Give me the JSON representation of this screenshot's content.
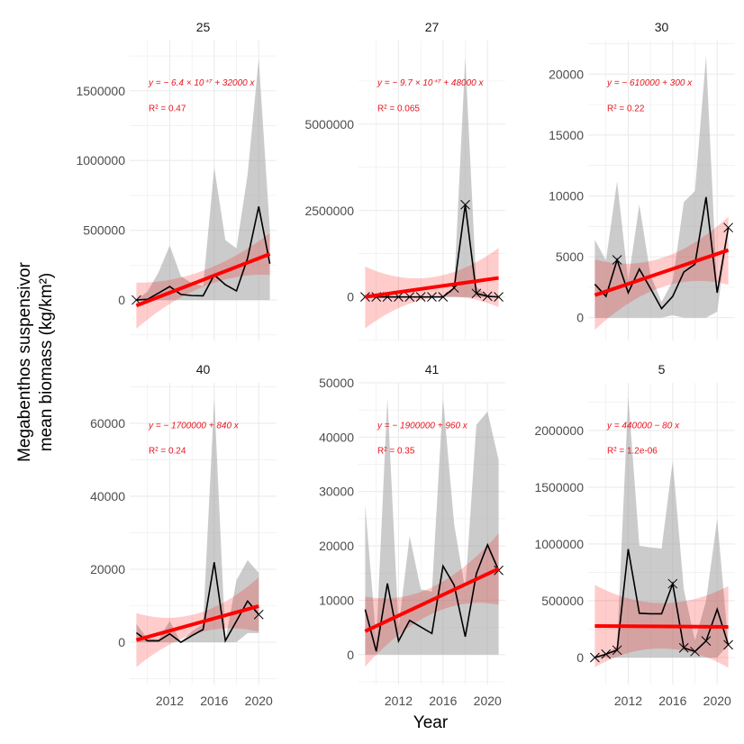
{
  "chart_data": {
    "type": "line",
    "layout": "facet grid 2 rows x 3 columns, free y scales, shared x",
    "xlabel": "Year",
    "ylabel": [
      "Megabenthos suspensivor",
      "mean biomass (kg/km²)"
    ],
    "xlim": [
      2008.4,
      2021.6
    ],
    "x_ticks": [
      2012,
      2016,
      2020
    ],
    "grid": true,
    "colors": {
      "line": "#000000",
      "ribbon": "#bebebe",
      "fit": "#ff0000",
      "fit_ci": "#ff9999",
      "equation": "#e8141e"
    },
    "panels": [
      {
        "title": "25",
        "equation": "y = − 6.4 × 10⁺⁷ + 32000 x",
        "r2": "R² = 0.47",
        "ylim": [
          -290000,
          1860000
        ],
        "y_ticks": [
          0,
          500000,
          1000000,
          1500000
        ],
        "x": [
          2009,
          2010,
          2011,
          2012,
          2013,
          2014,
          2015,
          2016,
          2017,
          2018,
          2019,
          2020,
          2021
        ],
        "y": [
          0,
          5000,
          50000,
          97000,
          40000,
          32000,
          30000,
          180000,
          110000,
          65000,
          300000,
          670000,
          260000
        ],
        "ribbon_upper": [
          0,
          60000,
          200000,
          390000,
          170000,
          120000,
          100000,
          950000,
          430000,
          370000,
          900000,
          1730000,
          500000
        ],
        "ribbon_lower": [
          0,
          0,
          0,
          0,
          0,
          0,
          0,
          0,
          0,
          0,
          0,
          0,
          0
        ],
        "markers": [
          2009
        ],
        "fit": {
          "x": [
            2009,
            2021
          ],
          "y": [
            -40000,
            330000
          ]
        },
        "ci": {
          "x": [
            2009,
            2015,
            2021
          ],
          "lower": [
            -205000,
            95000,
            180000
          ],
          "upper": [
            125000,
            210000,
            480000
          ]
        }
      },
      {
        "title": "27",
        "equation": "y = − 9.7 × 10⁺⁷ + 48000 x",
        "r2": "R² = 0.065",
        "ylim": [
          -1260000,
          7420000
        ],
        "y_ticks": [
          0,
          2500000,
          5000000
        ],
        "x": [
          2009,
          2010,
          2011,
          2012,
          2013,
          2014,
          2015,
          2016,
          2017,
          2018,
          2019,
          2020,
          2021
        ],
        "y": [
          0,
          0,
          0,
          0,
          0,
          0,
          0,
          0,
          260000,
          2670000,
          100000,
          20000,
          0
        ],
        "ribbon_upper": [
          0,
          0,
          0,
          0,
          0,
          0,
          0,
          0,
          300000,
          6930000,
          300000,
          20000,
          0
        ],
        "ribbon_lower": [
          0,
          0,
          0,
          0,
          0,
          0,
          0,
          0,
          0,
          0,
          0,
          0,
          0
        ],
        "markers": [
          2009,
          2010,
          2011,
          2012,
          2013,
          2014,
          2015,
          2016,
          2017,
          2018,
          2019,
          2020,
          2021
        ],
        "fit": {
          "x": [
            2009,
            2021
          ],
          "y": [
            0,
            550000
          ]
        },
        "ci": {
          "x": [
            2009,
            2015,
            2021
          ],
          "lower": [
            -910000,
            -30000,
            -300000
          ],
          "upper": [
            880000,
            570000,
            1420000
          ]
        }
      },
      {
        "title": "30",
        "equation": "y = − 610000 + 300 x",
        "r2": "R² = 0.22",
        "ylim": [
          -1870,
          22760
        ],
        "y_ticks": [
          0,
          5000,
          10000,
          15000,
          20000
        ],
        "x": [
          2009,
          2010,
          2011,
          2012,
          2013,
          2014,
          2015,
          2016,
          2017,
          2018,
          2019,
          2020,
          2021
        ],
        "y": [
          2750,
          1750,
          4750,
          2050,
          4000,
          2400,
          750,
          1750,
          3750,
          4400,
          9900,
          2050,
          7400
        ],
        "ribbon_upper": [
          6400,
          4700,
          11200,
          3000,
          9300,
          3500,
          1300,
          3000,
          9500,
          10400,
          21500,
          2100,
          7400
        ],
        "ribbon_lower": [
          0,
          0,
          0,
          0,
          0,
          0,
          0,
          200,
          0,
          0,
          0,
          500,
          7400
        ],
        "markers": [
          2011,
          2021
        ],
        "fit": {
          "x": [
            2009,
            2021
          ],
          "y": [
            1850,
            5550
          ]
        },
        "ci": {
          "x": [
            2009,
            2015,
            2021
          ],
          "lower": [
            -1000,
            2500,
            2700
          ],
          "upper": [
            4800,
            4900,
            8300
          ]
        }
      },
      {
        "title": "40",
        "equation": "y = − 1700000 + 840 x",
        "r2": "R² = 0.24",
        "ylim": [
          -11600,
          71100
        ],
        "y_ticks": [
          0,
          20000,
          40000,
          60000
        ],
        "x": [
          2009,
          2010,
          2011,
          2012,
          2013,
          2014,
          2015,
          2016,
          2017,
          2018,
          2019,
          2020
        ],
        "y": [
          2600,
          400,
          400,
          2300,
          0,
          1800,
          3500,
          21900,
          400,
          5800,
          11300,
          7600
        ],
        "ribbon_upper": [
          5000,
          1000,
          800,
          5800,
          0,
          3000,
          5000,
          67000,
          500,
          17000,
          22500,
          19000
        ],
        "ribbon_lower": [
          0,
          0,
          0,
          0,
          0,
          0,
          0,
          0,
          0,
          0,
          2500,
          2500
        ],
        "markers": [
          2020
        ],
        "fit": {
          "x": [
            2009,
            2020
          ],
          "y": [
            600,
            9900
          ]
        },
        "ci": {
          "x": [
            2009,
            2014.5,
            2020
          ],
          "lower": [
            -6800,
            2500,
            2900
          ],
          "upper": [
            8000,
            7900,
            17800
          ]
        }
      },
      {
        "title": "41",
        "equation": "y = − 1900000 + 960 x",
        "r2": "R² = 0.35",
        "ylim": [
          -5500,
          50000
        ],
        "y_ticks": [
          0,
          10000,
          20000,
          30000,
          40000,
          50000
        ],
        "x": [
          2009,
          2010,
          2011,
          2012,
          2013,
          2014,
          2015,
          2016,
          2017,
          2018,
          2019,
          2020,
          2021
        ],
        "y": [
          8300,
          600,
          13100,
          2500,
          6300,
          5100,
          3900,
          16300,
          12800,
          3300,
          14900,
          20200,
          15500
        ],
        "ribbon_upper": [
          27600,
          2800,
          47200,
          5000,
          21800,
          12000,
          11600,
          47200,
          24000,
          11900,
          42300,
          44700,
          35800
        ],
        "ribbon_lower": [
          0,
          0,
          0,
          0,
          0,
          0,
          0,
          0,
          0,
          0,
          0,
          0,
          0
        ],
        "markers": [
          2021
        ],
        "fit": {
          "x": [
            2009,
            2021
          ],
          "y": [
            4300,
            15800
          ]
        },
        "ci": {
          "x": [
            2009,
            2015,
            2021
          ],
          "lower": [
            -2200,
            7500,
            9200
          ],
          "upper": [
            10700,
            12400,
            22300
          ]
        }
      },
      {
        "title": "5",
        "equation": "y = 440000 − 80 x",
        "r2": "R² = 1.2e-06",
        "ylim": [
          -238000,
          2420000
        ],
        "y_ticks": [
          0,
          500000,
          1000000,
          1500000,
          2000000
        ],
        "x": [
          2009,
          2010,
          2011,
          2012,
          2013,
          2014,
          2015,
          2016,
          2017,
          2018,
          2019,
          2020,
          2021
        ],
        "y": [
          0,
          30000,
          65000,
          955000,
          390000,
          385000,
          385000,
          650000,
          85000,
          53000,
          146000,
          425000,
          112000
        ],
        "ribbon_upper": [
          0,
          30000,
          100000,
          2300000,
          985000,
          970000,
          960000,
          1730000,
          600000,
          150000,
          500000,
          1220000,
          112000
        ],
        "ribbon_lower": [
          0,
          0,
          0,
          0,
          0,
          0,
          0,
          0,
          0,
          0,
          0,
          0,
          112000
        ],
        "markers": [
          2009,
          2010,
          2011,
          2016,
          2017,
          2018,
          2019,
          2021
        ],
        "fit": {
          "x": [
            2009,
            2021
          ],
          "y": [
            278000,
            270000
          ]
        },
        "ci": {
          "x": [
            2009,
            2015,
            2021
          ],
          "lower": [
            -85000,
            80000,
            -90000
          ],
          "upper": [
            640000,
            480000,
            630000
          ]
        }
      }
    ]
  }
}
